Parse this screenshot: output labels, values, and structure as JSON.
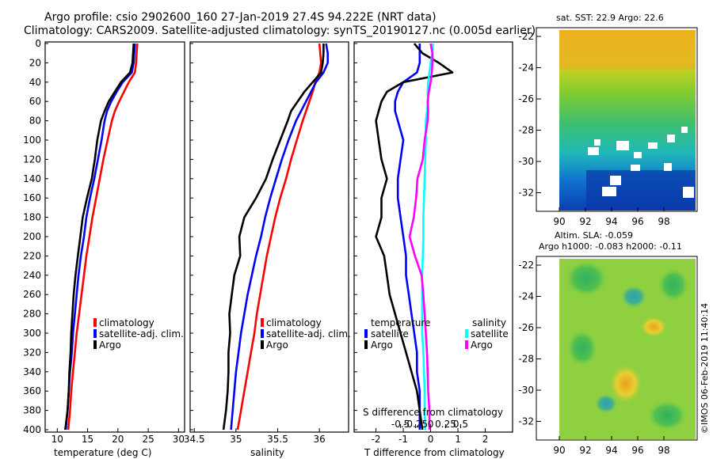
{
  "header": {
    "line1": "Argo profile: csio 2902600_160 27-Jan-2019 27.4S 94.222E (NRT data)",
    "line2": "Climatology: CARS2009. Satellite-adjusted climatology: synTS_20190127.nc (0.005d earlier)"
  },
  "colors": {
    "climatology": "#ff0000",
    "satellite_adj": "#0000ff",
    "argo": "#000000",
    "sal_satellite": "#00ffff",
    "sal_argo": "#ff00ff"
  },
  "legend": {
    "climatology": "climatology",
    "satellite_adj": "satellite-adj. clim.",
    "argo": "Argo",
    "diff_temp_head": "temperature",
    "diff_sal_head": "salinity",
    "satellite": "satellite"
  },
  "maps": {
    "sst_title": "sat. SST: 22.9 Argo: 22.6",
    "sla_title1": "Altim. SLA: -0.059",
    "sla_title2": "Argo h1000: -0.083 h2000: -0.11",
    "lat_ticks": [
      "-22",
      "-24",
      "-26",
      "-28",
      "-30",
      "-32"
    ],
    "lon_ticks": [
      "90",
      "92",
      "94",
      "96",
      "98"
    ]
  },
  "footer": {
    "stamp": "©IMOS 06-Feb-2019 11:40:14"
  },
  "chart_data": [
    {
      "type": "line",
      "panel": "temperature",
      "xlabel": "temperature (deg C)",
      "ylabel": "",
      "xlim": [
        8,
        31
      ],
      "ylim": [
        400,
        0
      ],
      "xticks": [
        10,
        15,
        20,
        25,
        30
      ],
      "yticks": [
        0,
        20,
        40,
        60,
        80,
        100,
        120,
        140,
        160,
        180,
        200,
        220,
        240,
        260,
        280,
        300,
        320,
        340,
        360,
        380,
        400
      ],
      "depth": [
        0,
        10,
        20,
        30,
        40,
        50,
        60,
        70,
        80,
        100,
        120,
        140,
        160,
        180,
        200,
        220,
        240,
        260,
        280,
        300,
        320,
        340,
        360,
        380,
        400
      ],
      "series": [
        {
          "name": "climatology",
          "values": [
            23.2,
            23.1,
            23.0,
            22.8,
            21.8,
            21.0,
            20.2,
            19.5,
            19.0,
            18.3,
            17.6,
            17.0,
            16.4,
            15.8,
            15.3,
            14.8,
            14.4,
            14.0,
            13.6,
            13.2,
            12.9,
            12.6,
            12.3,
            12.1,
            11.8
          ]
        },
        {
          "name": "satellite-adj. clim.",
          "values": [
            22.8,
            22.7,
            22.6,
            22.3,
            20.8,
            19.8,
            18.9,
            18.2,
            17.8,
            17.3,
            16.7,
            16.1,
            15.4,
            14.8,
            14.4,
            13.9,
            13.5,
            13.2,
            12.9,
            12.6,
            12.4,
            12.1,
            11.9,
            11.7,
            11.4
          ]
        },
        {
          "name": "Argo",
          "values": [
            22.6,
            22.5,
            22.4,
            22.0,
            20.5,
            19.5,
            18.5,
            17.8,
            17.2,
            16.6,
            16.2,
            15.7,
            14.9,
            14.2,
            13.8,
            13.4,
            13.0,
            12.7,
            12.5,
            12.3,
            12.2,
            12.0,
            11.9,
            11.7,
            11.3
          ]
        }
      ]
    },
    {
      "type": "line",
      "panel": "salinity",
      "xlabel": "salinity",
      "xlim": [
        34.45,
        36.35
      ],
      "ylim": [
        400,
        0
      ],
      "xticks": [
        34.5,
        35,
        35.5,
        36
      ],
      "xtick_labels": [
        "34.5",
        "35",
        "35.5",
        "36"
      ],
      "depth": [
        0,
        10,
        20,
        30,
        40,
        50,
        60,
        70,
        80,
        100,
        120,
        140,
        160,
        180,
        200,
        220,
        240,
        260,
        280,
        300,
        320,
        340,
        360,
        380,
        400
      ],
      "series": [
        {
          "name": "climatology",
          "values": [
            36.0,
            36.01,
            36.02,
            36.0,
            35.95,
            35.92,
            35.88,
            35.84,
            35.8,
            35.73,
            35.66,
            35.6,
            35.53,
            35.47,
            35.42,
            35.37,
            35.33,
            35.29,
            35.25,
            35.22,
            35.18,
            35.14,
            35.1,
            35.06,
            35.02
          ]
        },
        {
          "name": "satellite-adj. clim.",
          "values": [
            36.08,
            36.1,
            36.1,
            36.05,
            35.96,
            35.9,
            35.84,
            35.78,
            35.72,
            35.63,
            35.55,
            35.48,
            35.41,
            35.35,
            35.3,
            35.24,
            35.19,
            35.14,
            35.1,
            35.06,
            35.03,
            35.0,
            34.98,
            34.96,
            34.94
          ]
        },
        {
          "name": "Argo",
          "values": [
            36.05,
            36.05,
            36.04,
            36.02,
            35.92,
            35.82,
            35.74,
            35.66,
            35.62,
            35.53,
            35.44,
            35.36,
            35.24,
            35.1,
            35.04,
            35.05,
            34.98,
            34.95,
            34.92,
            34.93,
            34.91,
            34.91,
            34.9,
            34.88,
            34.85
          ]
        }
      ]
    },
    {
      "type": "line",
      "panel": "difference",
      "xlabel": "T difference from climatology",
      "xlabel_top": "S difference from climatology",
      "xlim": [
        -2.8,
        3.0
      ],
      "ylim": [
        400,
        0
      ],
      "xticks": [
        -2,
        -1,
        0,
        1,
        2
      ],
      "xtick_labels": [
        "-2",
        "-1",
        "0",
        "1",
        "2"
      ],
      "sticks": [
        "-0.5",
        "-0.25",
        "0",
        "0.25",
        "0.5"
      ],
      "depth": [
        0,
        10,
        20,
        30,
        40,
        50,
        60,
        70,
        80,
        100,
        120,
        140,
        160,
        180,
        200,
        220,
        240,
        260,
        280,
        300,
        320,
        340,
        360,
        380,
        400
      ],
      "series": [
        {
          "name": "temperature satellite",
          "values": [
            -0.4,
            -0.4,
            -0.4,
            -0.5,
            -1.0,
            -1.2,
            -1.3,
            -1.3,
            -1.2,
            -1.0,
            -1.1,
            -1.2,
            -1.2,
            -1.1,
            -1.0,
            -0.9,
            -0.9,
            -0.8,
            -0.7,
            -0.6,
            -0.5,
            -0.5,
            -0.4,
            -0.4,
            -0.4
          ]
        },
        {
          "name": "temperature Argo",
          "values": [
            -0.6,
            -0.3,
            0.3,
            0.8,
            -1.0,
            -1.6,
            -1.8,
            -1.9,
            -2.0,
            -1.9,
            -1.8,
            -1.6,
            -1.8,
            -1.8,
            -2.0,
            -1.7,
            -1.6,
            -1.5,
            -1.3,
            -1.1,
            -0.9,
            -0.7,
            -0.5,
            -0.4,
            -0.3
          ]
        },
        {
          "name": "salinity satellite",
          "values": [
            0.04,
            0.03,
            0.0,
            -0.02,
            -0.04,
            -0.05,
            -0.04,
            -0.06,
            -0.08,
            -0.08,
            -0.09,
            -0.1,
            -0.11,
            -0.12,
            -0.12,
            -0.13,
            -0.14,
            -0.14,
            -0.14,
            -0.14,
            -0.12,
            -0.11,
            -0.1,
            -0.1,
            -0.09
          ]
        },
        {
          "name": "salinity Argo",
          "values": [
            0.0,
            0.03,
            0.03,
            0.02,
            0.0,
            -0.03,
            -0.05,
            -0.04,
            -0.05,
            -0.1,
            -0.13,
            -0.22,
            -0.24,
            -0.28,
            -0.35,
            -0.26,
            -0.15,
            -0.12,
            -0.1,
            -0.08,
            -0.06,
            -0.05,
            -0.04,
            -0.02,
            -0.02
          ]
        }
      ]
    }
  ]
}
